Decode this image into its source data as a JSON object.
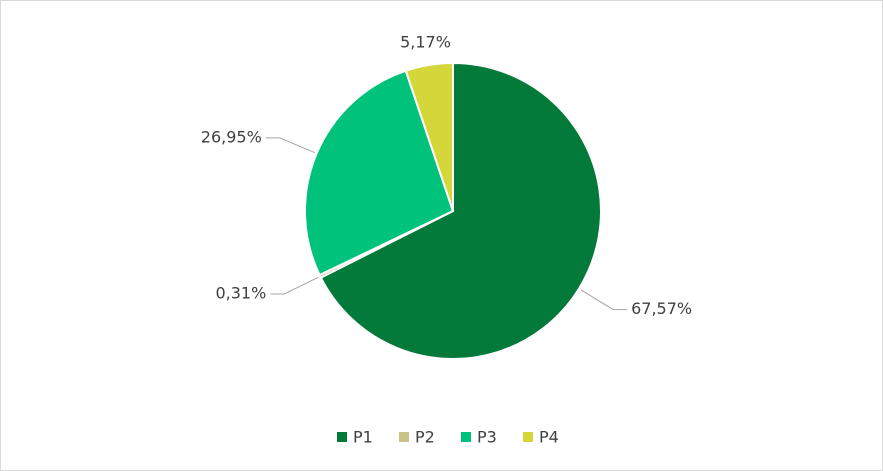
{
  "chart_data": {
    "type": "pie",
    "categories": [
      "P1",
      "P2",
      "P3",
      "P4"
    ],
    "values": [
      67.57,
      0.31,
      26.95,
      5.17
    ],
    "value_labels": [
      "67,57%",
      "0,31%",
      "26,95%",
      "5,17%"
    ],
    "colors": [
      "#037a3a",
      "#c9c38a",
      "#00c27a",
      "#d4d63a"
    ],
    "legend": "bottom"
  }
}
